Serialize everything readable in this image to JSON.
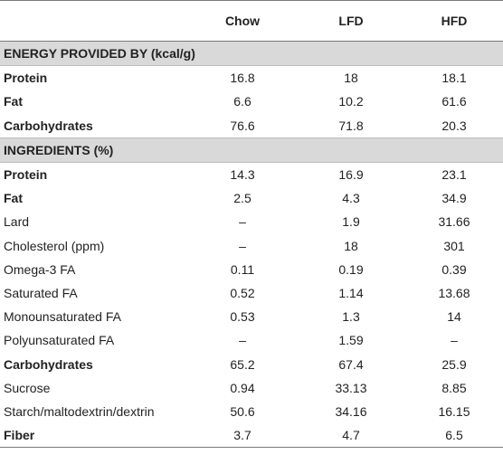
{
  "header": {
    "col0": "",
    "col1": "Chow",
    "col2": "LFD",
    "col3": "HFD"
  },
  "section1": {
    "title": "ENERGY PROVIDED BY (kcal/g)",
    "rows": [
      {
        "label": "Protein",
        "bold": true,
        "values": [
          "16.8",
          "18",
          "18.1"
        ]
      },
      {
        "label": "Fat",
        "bold": true,
        "values": [
          "6.6",
          "10.2",
          "61.6"
        ]
      },
      {
        "label": "Carbohydrates",
        "bold": true,
        "values": [
          "76.6",
          "71.8",
          "20.3"
        ]
      }
    ]
  },
  "section2": {
    "title": "INGREDIENTS (%)",
    "rows": [
      {
        "label": "Protein",
        "bold": true,
        "values": [
          "14.3",
          "16.9",
          "23.1"
        ]
      },
      {
        "label": "Fat",
        "bold": true,
        "values": [
          "2.5",
          "4.3",
          "34.9"
        ]
      },
      {
        "label": "Lard",
        "bold": false,
        "values": [
          "–",
          "1.9",
          "31.66"
        ]
      },
      {
        "label": "Cholesterol (ppm)",
        "bold": false,
        "values": [
          "–",
          "18",
          "301"
        ]
      },
      {
        "label": "Omega-3 FA",
        "bold": false,
        "values": [
          "0.11",
          "0.19",
          "0.39"
        ]
      },
      {
        "label": "Saturated FA",
        "bold": false,
        "values": [
          "0.52",
          "1.14",
          "13.68"
        ]
      },
      {
        "label": "Monounsaturated FA",
        "bold": false,
        "values": [
          "0.53",
          "1.3",
          "14"
        ]
      },
      {
        "label": "Polyunsaturated FA",
        "bold": false,
        "values": [
          "–",
          "1.59",
          "–"
        ]
      },
      {
        "label": "Carbohydrates",
        "bold": true,
        "values": [
          "65.2",
          "67.4",
          "25.9"
        ]
      },
      {
        "label": "Sucrose",
        "bold": false,
        "values": [
          "0.94",
          "33.13",
          "8.85"
        ]
      },
      {
        "label": "Starch/maltodextrin/dextrin",
        "bold": false,
        "values": [
          "50.6",
          "34.16",
          "16.15"
        ]
      },
      {
        "label": "Fiber",
        "bold": true,
        "values": [
          "3.7",
          "4.7",
          "6.5"
        ]
      }
    ]
  }
}
